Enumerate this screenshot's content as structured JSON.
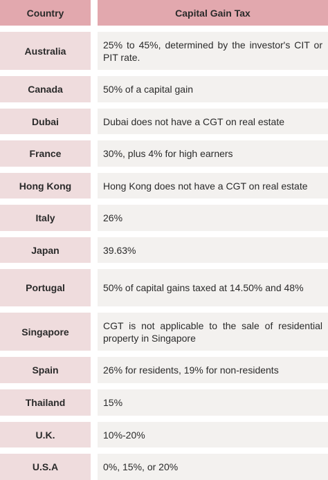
{
  "header": {
    "country": "Country",
    "tax": "Capital Gain Tax"
  },
  "rows": [
    {
      "country": "Australia",
      "tax": "25% to 45%, determined by the investor's CIT or PIT rate."
    },
    {
      "country": "Canada",
      "tax": "50% of a capital gain"
    },
    {
      "country": "Dubai",
      "tax": "Dubai does not have a CGT on real estate"
    },
    {
      "country": "France",
      "tax": "30%, plus 4% for high earners"
    },
    {
      "country": "Hong Kong",
      "tax": "Hong Kong does not have a CGT on real estate"
    },
    {
      "country": "Italy",
      "tax": "26%"
    },
    {
      "country": "Japan",
      "tax": "39.63%"
    },
    {
      "country": "Portugal",
      "tax": "50% of capital gains taxed at 14.50% and 48%"
    },
    {
      "country": "Singapore",
      "tax": "CGT is not applicable to the sale of residential property in Singapore"
    },
    {
      "country": "Spain",
      "tax": "26% for residents, 19% for non-residents"
    },
    {
      "country": "Thailand",
      "tax": "15%"
    },
    {
      "country": "U.K.",
      "tax": "10%-20%"
    },
    {
      "country": "U.S.A",
      "tax": "0%, 15%, or 20%"
    }
  ]
}
